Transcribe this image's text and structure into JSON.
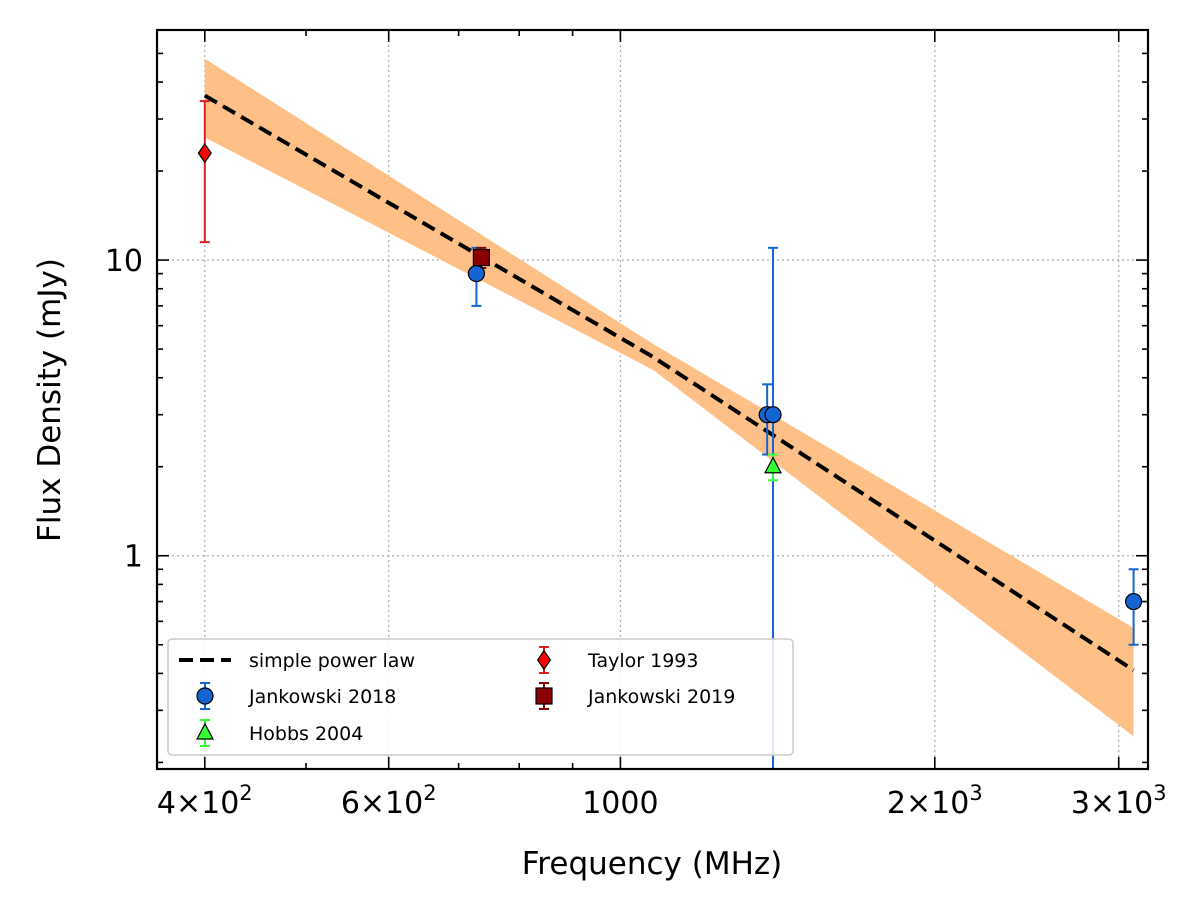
{
  "chart_data": {
    "type": "scatter",
    "title": "",
    "xlabel": "Frequency (MHz)",
    "ylabel": "Flux Density (mJy)",
    "xscale": "log",
    "yscale": "log",
    "xlim": [
      360,
      3200
    ],
    "ylim": [
      0.19,
      60
    ],
    "x_ticks": [
      {
        "value": 400,
        "mant": "4",
        "exp": "2"
      },
      {
        "value": 600,
        "mant": "6",
        "exp": "2"
      },
      {
        "value": 1000,
        "plain": "1000"
      },
      {
        "value": 2000,
        "mant": "2",
        "exp": "3"
      },
      {
        "value": 3000,
        "mant": "3",
        "exp": "3"
      }
    ],
    "y_ticks": [
      {
        "value": 1,
        "label": "1"
      },
      {
        "value": 10,
        "label": "10"
      }
    ],
    "grid": true,
    "legend_position": "lower-left",
    "series": [
      {
        "name": "Jankowski 2018",
        "marker": "circle",
        "color": "#1464d2",
        "ecolor": "#1464d2",
        "points": [
          {
            "x": 728,
            "y": 9.0,
            "ylow": 7.0,
            "yhigh": 11.0
          },
          {
            "x": 1382,
            "y": 3.0,
            "ylow": 2.2,
            "yhigh": 3.8
          },
          {
            "x": 1400,
            "y": 3.0,
            "ylow": 0.19,
            "yhigh": 11.0
          },
          {
            "x": 3100,
            "y": 0.7,
            "ylow": 0.5,
            "yhigh": 0.9
          }
        ]
      },
      {
        "name": "Hobbs 2004",
        "marker": "triangle",
        "color": "#33ff33",
        "ecolor": "#33ff33",
        "points": [
          {
            "x": 1400,
            "y": 2.0,
            "ylow": 1.8,
            "yhigh": 2.2
          }
        ]
      },
      {
        "name": "Taylor 1993",
        "marker": "diamond",
        "color": "#ff0000",
        "ecolor": "#e02020",
        "points": [
          {
            "x": 400,
            "y": 23.0,
            "ylow": 11.5,
            "yhigh": 34.5
          }
        ]
      },
      {
        "name": "Jankowski 2019",
        "marker": "square",
        "color": "#8b0000",
        "ecolor": "#8b0000",
        "points": [
          {
            "x": 736,
            "y": 10.2,
            "ylow": 9.4,
            "yhigh": 11.0
          }
        ]
      }
    ],
    "fit": {
      "name": "simple power law",
      "color": "#000000",
      "band_color": "#ffc088",
      "x": [
        400,
        1075,
        3100
      ],
      "y": [
        36.0,
        4.7,
        0.41
      ],
      "y_upper": [
        48.0,
        5.2,
        0.57
      ],
      "y_lower": [
        26.0,
        4.25,
        0.245
      ]
    }
  }
}
